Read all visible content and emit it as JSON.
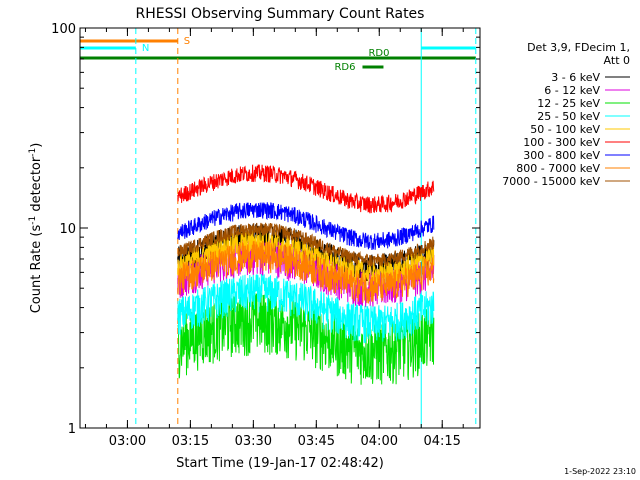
{
  "chart_data": {
    "type": "line",
    "title": "RHESSI Observing Summary Count Rates",
    "xlabel": "Start Time (19-Jan-17 02:48:42)",
    "ylabel_main": "Count Rate (s",
    "ylabel_sup1": "-1",
    "ylabel_mid": " detector",
    "ylabel_sup2": "-1",
    "ylabel_end": ")",
    "footer": "1-Sep-2022 23:10",
    "x_scale": "time",
    "x_range": [
      "02:48:42",
      "04:24:00"
    ],
    "x_ticks": [
      "03:00",
      "03:15",
      "03:30",
      "03:45",
      "04:00",
      "04:15"
    ],
    "y_scale": "log",
    "ylim": [
      1,
      100
    ],
    "y_ticks": [
      "1",
      "10",
      "100"
    ],
    "legend_header": [
      "Det 3,9, FDecim 1,",
      "Att 0"
    ],
    "legend_placement": "top-right outside",
    "series": [
      {
        "name": "3 - 6 keV",
        "color": "#000000",
        "level": 7.6,
        "spread": 0.18,
        "segments": [
          [
            "03:12",
            "04:13"
          ]
        ]
      },
      {
        "name": "6 - 12 keV",
        "color": "#dd00dd",
        "level": 6.2,
        "spread": 0.22,
        "segments": [
          [
            "03:12",
            "04:13"
          ]
        ]
      },
      {
        "name": "12 - 25 keV",
        "color": "#00e000",
        "level": 3.0,
        "spread": 0.35,
        "segments": [
          [
            "03:12",
            "04:13"
          ]
        ]
      },
      {
        "name": "25 - 50 keV",
        "color": "#00ffff",
        "level": 4.1,
        "spread": 0.22,
        "segments": [
          [
            "03:12",
            "04:13"
          ]
        ]
      },
      {
        "name": "50 - 100 keV",
        "color": "#ffc800",
        "level": 7.2,
        "spread": 0.15,
        "segments": [
          [
            "03:12",
            "04:13"
          ]
        ]
      },
      {
        "name": "100 - 300 keV",
        "color": "#ff0000",
        "level": 16.0,
        "spread": 0.1,
        "segments": [
          [
            "03:12",
            "04:13"
          ]
        ]
      },
      {
        "name": "300 - 800 keV",
        "color": "#0000ff",
        "level": 10.5,
        "spread": 0.1,
        "segments": [
          [
            "03:12",
            "04:13"
          ]
        ]
      },
      {
        "name": "800 - 7000 keV",
        "color": "#ff8000",
        "level": 6.2,
        "spread": 0.18,
        "segments": [
          [
            "03:12",
            "04:13"
          ]
        ]
      },
      {
        "name": "7000 - 15000 keV",
        "color": "#a05000",
        "level": 8.4,
        "spread": 0.08,
        "segments": [
          [
            "03:12",
            "04:13"
          ]
        ]
      }
    ],
    "flag_bars": [
      {
        "label": "S",
        "color": "#ff8000",
        "start": "02:48:42",
        "end": "03:12"
      },
      {
        "label": "N",
        "color": "#00ffff",
        "start": "02:48:42",
        "end": "03:02"
      },
      {
        "label": "N",
        "color": "#00ffff",
        "start": "04:10",
        "end": "04:23",
        "no_label": true
      },
      {
        "label": "RD0",
        "color": "#008000",
        "start": "02:48:42",
        "end": "04:23"
      },
      {
        "label": "RD6",
        "color": "#008000",
        "start": "03:56",
        "end": "04:01"
      }
    ],
    "vlines": [
      {
        "time": "02:48:42",
        "color": "#00ffff",
        "style": "solid"
      },
      {
        "time": "03:02",
        "color": "#00ffff",
        "style": "dashed"
      },
      {
        "time": "03:12",
        "color": "#ff8000",
        "style": "dashed"
      },
      {
        "time": "04:10",
        "color": "#00ffff",
        "style": "solid"
      },
      {
        "time": "04:23",
        "color": "#00ffff",
        "style": "dashed"
      }
    ]
  }
}
